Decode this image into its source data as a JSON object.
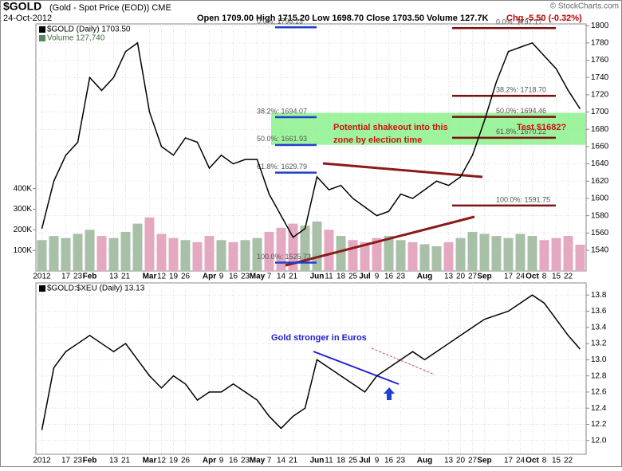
{
  "header": {
    "symbol": "$GOLD",
    "description": "(Gold - Spot Price (EOD)) CME",
    "date": "24-Oct-2012",
    "quote": "Open 1709.00 High 1715.20 Low 1698.70 Close 1703.50 Volume 127.7K",
    "change": "Chg -5.50 (-0.32%)",
    "watermark": "© StockCharts.com"
  },
  "chart_data": [
    {
      "type": "line",
      "legend": "$GOLD (Daily) 1703.50",
      "color": "#000000",
      "grid": true,
      "categories": [
        "2012",
        null,
        "17",
        "23",
        "Feb",
        null,
        "13",
        "21",
        null,
        "Mar",
        "12",
        "19",
        "26",
        null,
        "Apr",
        "9",
        "16",
        "23",
        "May",
        "7",
        "14",
        "21",
        null,
        "Jun",
        "11",
        "18",
        "25",
        "Jul",
        "9",
        "16",
        "23",
        null,
        "Aug",
        null,
        "13",
        "20",
        "27",
        "Sep",
        null,
        "17",
        "24",
        "Oct",
        "8",
        "15",
        "22",
        null
      ],
      "values": [
        1565,
        1620,
        1650,
        1665,
        1740,
        1725,
        1740,
        1770,
        1780,
        1700,
        1660,
        1650,
        1670,
        1665,
        1635,
        1650,
        1640,
        1645,
        1645,
        1605,
        1580,
        1555,
        1565,
        1625,
        1610,
        1615,
        1600,
        1590,
        1580,
        1585,
        1605,
        1600,
        1610,
        1620,
        1615,
        1625,
        1650,
        1690,
        1735,
        1770,
        1775,
        1780,
        1765,
        1750,
        1725,
        1703.5
      ],
      "ylim": [
        1516,
        1802
      ],
      "yticks": [
        1540,
        1560,
        1580,
        1600,
        1620,
        1640,
        1660,
        1680,
        1700,
        1720,
        1740,
        1760,
        1780,
        1800
      ],
      "volume": {
        "name": "Volume 127,740",
        "up_color": "#a8c0a8",
        "down_color": "#e4a8c0",
        "values": [
          150000,
          170000,
          160000,
          180000,
          200000,
          170000,
          160000,
          190000,
          230000,
          260000,
          180000,
          160000,
          150000,
          140000,
          170000,
          150000,
          140000,
          150000,
          160000,
          190000,
          210000,
          230000,
          220000,
          240000,
          200000,
          170000,
          150000,
          140000,
          160000,
          170000,
          150000,
          140000,
          130000,
          120000,
          140000,
          160000,
          190000,
          180000,
          170000,
          160000,
          180000,
          170000,
          150000,
          160000,
          170000,
          127740
        ],
        "ylim": [
          0,
          1200000
        ],
        "yticks": [
          {
            "value": 100000,
            "label": "100K"
          },
          {
            "value": 200000,
            "label": "200K"
          },
          {
            "value": 300000,
            "label": "300K"
          },
          {
            "value": 400000,
            "label": "400K"
          }
        ]
      },
      "fib_left": {
        "color": "#1f3fd0",
        "levels": [
          {
            "value": 1798.13,
            "label": "0.0%: 1798.13"
          },
          {
            "value": 1694.07,
            "label": "38.2%: 1694.07"
          },
          {
            "value": 1661.93,
            "label": "50.0%: 1661.93"
          },
          {
            "value": 1629.79,
            "label": "61.8%: 1629.79"
          },
          {
            "value": 1525.73,
            "label": "100.0%: 1525.73"
          }
        ]
      },
      "fib_right": {
        "color": "#7a1010",
        "levels": [
          {
            "value": 1797.17,
            "label": "0.0%: 1797.17"
          },
          {
            "value": 1718.7,
            "label": "38.2%: 1718.70"
          },
          {
            "value": 1694.46,
            "label": "50.0%: 1694.46"
          },
          {
            "value": 1670.22,
            "label": "61.8%: 1670.22"
          },
          {
            "value": 1591.75,
            "label": "100.0%: 1591.75"
          }
        ]
      },
      "zone": [
        1662,
        1699
      ],
      "zone_color": "#7ef07e",
      "annotations": [
        "Potential shakeout into this",
        "zone by election time",
        "Test $1682?"
      ]
    },
    {
      "type": "line",
      "legend": "$GOLD:$XEU (Daily) 13.13",
      "color": "#000000",
      "grid": true,
      "values": [
        12.13,
        12.9,
        13.1,
        13.2,
        13.3,
        13.2,
        13.1,
        13.2,
        13.0,
        12.8,
        12.65,
        12.8,
        12.7,
        12.5,
        12.6,
        12.6,
        12.7,
        12.6,
        12.5,
        12.3,
        12.15,
        12.3,
        12.4,
        13.0,
        12.9,
        12.8,
        12.7,
        12.6,
        12.8,
        12.9,
        13.0,
        13.1,
        13.0,
        13.1,
        13.2,
        13.3,
        13.4,
        13.5,
        13.55,
        13.6,
        13.7,
        13.8,
        13.7,
        13.5,
        13.3,
        13.13
      ],
      "ylim": [
        11.83,
        13.95
      ],
      "yticks": [
        {
          "value": 12.0,
          "label": "12.0"
        },
        12.2,
        12.4,
        12.6,
        12.8,
        {
          "value": 13.0,
          "label": "13.0"
        },
        13.2,
        13.4,
        13.6,
        13.8
      ],
      "annotations": [
        "Gold stronger in Euros"
      ]
    }
  ]
}
